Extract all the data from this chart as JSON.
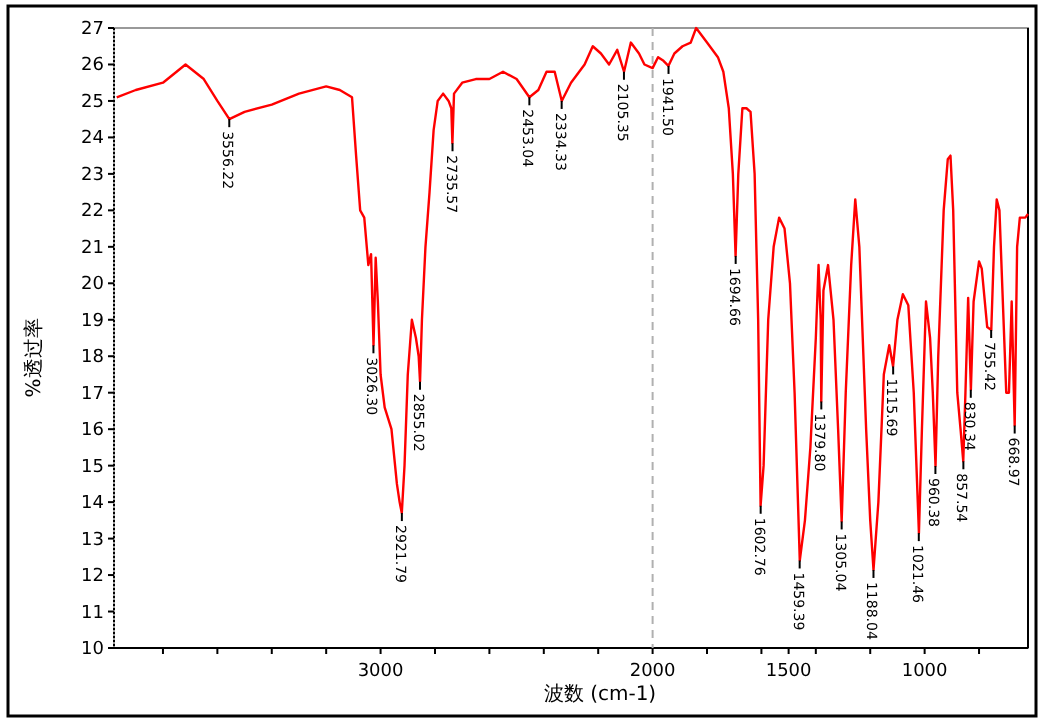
{
  "chart_data": {
    "type": "line",
    "xlabel": "波数 (cm-1)",
    "ylabel": "%透过率",
    "xlim": [
      3980,
      620
    ],
    "ylim": [
      10,
      27
    ],
    "xticks": [
      {
        "value": 3800,
        "label": null
      },
      {
        "value": 3600,
        "label": null
      },
      {
        "value": 3400,
        "label": null
      },
      {
        "value": 3200,
        "label": null
      },
      3000,
      {
        "value": 2800,
        "label": null
      },
      {
        "value": 2600,
        "label": null
      },
      {
        "value": 2400,
        "label": null
      },
      {
        "value": 2200,
        "label": null
      },
      2000,
      {
        "value": 1800,
        "label": null
      },
      {
        "value": 1600,
        "label": null
      },
      1500,
      {
        "value": 1400,
        "label": null
      },
      {
        "value": 1200,
        "label": null
      },
      1000,
      {
        "value": 800,
        "label": null
      }
    ],
    "yticks": [
      10,
      11,
      12,
      13,
      14,
      15,
      16,
      17,
      18,
      19,
      20,
      21,
      22,
      23,
      24,
      25,
      26,
      27
    ],
    "ref_lines": [
      {
        "axis": "x",
        "value": 2000,
        "color": "#b0b0b0",
        "line_style": "dashed"
      }
    ],
    "series": [
      {
        "color": "#ff0000",
        "x": [
          3970,
          3900,
          3800,
          3717,
          3650,
          3600,
          3556,
          3500,
          3400,
          3300,
          3200,
          3150,
          3105,
          3090,
          3075,
          3060,
          3045,
          3035,
          3026,
          3018,
          3010,
          3000,
          2985,
          2960,
          2940,
          2930,
          2922,
          2912,
          2900,
          2885,
          2870,
          2860,
          2855,
          2848,
          2835,
          2820,
          2805,
          2790,
          2770,
          2750,
          2740,
          2736,
          2730,
          2700,
          2650,
          2600,
          2550,
          2500,
          2453,
          2420,
          2390,
          2360,
          2334,
          2300,
          2250,
          2220,
          2190,
          2160,
          2130,
          2105,
          2080,
          2050,
          2030,
          2000,
          1980,
          1960,
          1942,
          1920,
          1890,
          1860,
          1840,
          1800,
          1760,
          1740,
          1720,
          1705,
          1695,
          1685,
          1670,
          1655,
          1640,
          1625,
          1612,
          1603,
          1592,
          1575,
          1555,
          1535,
          1515,
          1495,
          1478,
          1459,
          1440,
          1420,
          1400,
          1390,
          1382,
          1380,
          1372,
          1355,
          1335,
          1318,
          1305,
          1290,
          1270,
          1255,
          1240,
          1215,
          1200,
          1188,
          1170,
          1150,
          1130,
          1116,
          1100,
          1080,
          1060,
          1040,
          1021,
          1010,
          995,
          980,
          970,
          960,
          950,
          930,
          915,
          905,
          895,
          880,
          868,
          858,
          850,
          840,
          830,
          820,
          800,
          790,
          770,
          755,
          745,
          735,
          725,
          710,
          700,
          690,
          680,
          669,
          660,
          650,
          640,
          630,
          620
        ],
        "values": [
          25.1,
          25.3,
          25.5,
          26.0,
          25.6,
          25.0,
          24.5,
          24.7,
          24.9,
          25.2,
          25.4,
          25.3,
          25.1,
          23.5,
          22.0,
          21.8,
          20.5,
          20.8,
          18.3,
          20.7,
          19.5,
          17.5,
          16.6,
          16.0,
          14.5,
          14.0,
          13.7,
          15.0,
          17.5,
          19.0,
          18.5,
          18.0,
          17.3,
          19.0,
          21.0,
          22.5,
          24.2,
          25.0,
          25.2,
          25.0,
          24.8,
          23.84,
          25.2,
          25.5,
          25.6,
          25.6,
          25.8,
          25.6,
          25.1,
          25.3,
          25.8,
          25.8,
          25.0,
          25.5,
          26.0,
          26.5,
          26.3,
          26.0,
          26.4,
          25.8,
          26.6,
          26.3,
          26.0,
          25.9,
          26.2,
          26.1,
          25.96,
          26.3,
          26.5,
          26.6,
          27.0,
          26.6,
          26.2,
          25.8,
          24.8,
          23.0,
          20.75,
          23.0,
          24.8,
          24.8,
          24.7,
          23.0,
          19.0,
          13.9,
          15.0,
          19.0,
          21.0,
          21.8,
          21.5,
          20.0,
          17.0,
          12.4,
          13.5,
          15.5,
          18.5,
          20.5,
          19.0,
          16.76,
          19.8,
          20.5,
          19.0,
          16.0,
          13.47,
          17.0,
          20.5,
          22.3,
          21.0,
          16.0,
          13.5,
          12.14,
          14.0,
          17.5,
          18.3,
          17.72,
          19.0,
          19.7,
          19.4,
          17.0,
          13.15,
          16.0,
          19.5,
          18.5,
          17.0,
          14.99,
          18.0,
          22.0,
          23.4,
          23.5,
          22.0,
          17.0,
          16.0,
          15.12,
          17.0,
          19.6,
          17.08,
          19.5,
          20.6,
          20.4,
          18.8,
          18.72,
          21.0,
          22.3,
          22.0,
          19.0,
          17.0,
          17.0,
          19.5,
          16.1,
          21.0,
          21.8,
          21.8,
          21.8,
          21.9
        ]
      }
    ],
    "annotations": [
      {
        "text": "3556.22",
        "x": 3556.22,
        "y": 24.5
      },
      {
        "text": "3026.30",
        "x": 3026.3,
        "y": 18.3
      },
      {
        "text": "2921.79",
        "x": 2921.79,
        "y": 13.7
      },
      {
        "text": "2855.02",
        "x": 2855.02,
        "y": 17.3
      },
      {
        "text": "2735.57",
        "x": 2735.57,
        "y": 23.84
      },
      {
        "text": "2453.04",
        "x": 2453.04,
        "y": 25.1
      },
      {
        "text": "2334.33",
        "x": 2334.33,
        "y": 25.0
      },
      {
        "text": "2105.35",
        "x": 2105.35,
        "y": 25.8
      },
      {
        "text": "1941.50",
        "x": 1941.5,
        "y": 25.96
      },
      {
        "text": "1694.66",
        "x": 1694.66,
        "y": 20.75
      },
      {
        "text": "1602.76",
        "x": 1602.76,
        "y": 13.9
      },
      {
        "text": "1459.39",
        "x": 1459.39,
        "y": 12.4
      },
      {
        "text": "1379.80",
        "x": 1379.8,
        "y": 16.76
      },
      {
        "text": "1305.04",
        "x": 1305.04,
        "y": 13.47
      },
      {
        "text": "1188.04",
        "x": 1188.04,
        "y": 12.14
      },
      {
        "text": "1115.69",
        "x": 1115.69,
        "y": 17.72
      },
      {
        "text": "1021.46",
        "x": 1021.46,
        "y": 13.15
      },
      {
        "text": "960.38",
        "x": 960.38,
        "y": 14.99
      },
      {
        "text": "857.54",
        "x": 857.54,
        "y": 15.12
      },
      {
        "text": "830.34",
        "x": 830.34,
        "y": 17.08
      },
      {
        "text": "755.42",
        "x": 755.42,
        "y": 18.72
      },
      {
        "text": "668.97",
        "x": 668.97,
        "y": 16.1
      }
    ]
  }
}
